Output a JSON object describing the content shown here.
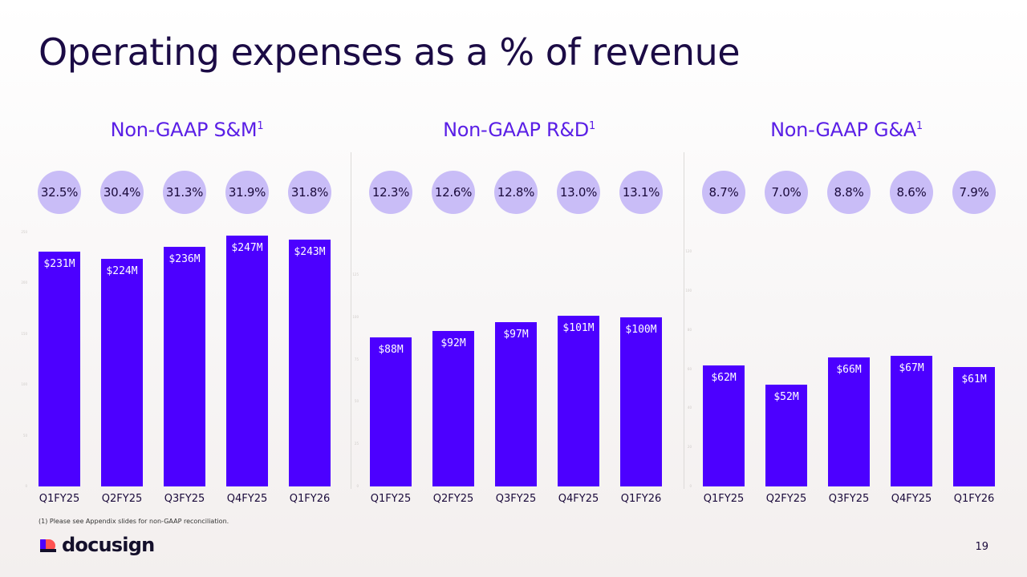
{
  "title": "Operating expenses as a % of revenue",
  "footnote": "(1)  Please see Appendix slides for non-GAAP reconciliation.",
  "logo": {
    "text": "docusign",
    "icon": "docusign-logo-icon"
  },
  "page_number": "19",
  "colors": {
    "bar": "#4c00ff",
    "circle": "#c9bdf7",
    "accent": "#5a1fe6",
    "title": "#1b0b45"
  },
  "chart_data": [
    {
      "type": "bar",
      "title": "Non-GAAP S&M",
      "footnote_marker": "1",
      "categories": [
        "Q1FY25",
        "Q2FY25",
        "Q3FY25",
        "Q4FY25",
        "Q1FY26"
      ],
      "values": [
        231,
        224,
        236,
        247,
        243
      ],
      "value_labels": [
        "$231M",
        "$224M",
        "$236M",
        "$247M",
        "$243M"
      ],
      "percent_of_revenue": [
        "32.5%",
        "30.4%",
        "31.3%",
        "31.9%",
        "31.8%"
      ],
      "unit": "$M",
      "ylim": [
        0,
        250
      ],
      "yticks": [
        "0",
        "50",
        "100",
        "150",
        "200",
        "250"
      ]
    },
    {
      "type": "bar",
      "title": "Non-GAAP R&D",
      "footnote_marker": "1",
      "categories": [
        "Q1FY25",
        "Q2FY25",
        "Q3FY25",
        "Q4FY25",
        "Q1FY26"
      ],
      "values": [
        88,
        92,
        97,
        101,
        100
      ],
      "value_labels": [
        "$88M",
        "$92M",
        "$97M",
        "$101M",
        "$100M"
      ],
      "percent_of_revenue": [
        "12.3%",
        "12.6%",
        "12.8%",
        "13.0%",
        "13.1%"
      ],
      "unit": "$M",
      "ylim": [
        0,
        150
      ],
      "yticks": [
        "0",
        "25",
        "50",
        "75",
        "100",
        "125"
      ]
    },
    {
      "type": "bar",
      "title": "Non-GAAP G&A",
      "footnote_marker": "1",
      "categories": [
        "Q1FY25",
        "Q2FY25",
        "Q3FY25",
        "Q4FY25",
        "Q1FY26"
      ],
      "values": [
        62,
        52,
        66,
        67,
        61
      ],
      "value_labels": [
        "$62M",
        "$52M",
        "$66M",
        "$67M",
        "$61M"
      ],
      "percent_of_revenue": [
        "8.7%",
        "7.0%",
        "8.8%",
        "8.6%",
        "7.9%"
      ],
      "unit": "$M",
      "ylim": [
        0,
        130
      ],
      "yticks": [
        "0",
        "20",
        "40",
        "60",
        "80",
        "100",
        "120"
      ]
    }
  ]
}
